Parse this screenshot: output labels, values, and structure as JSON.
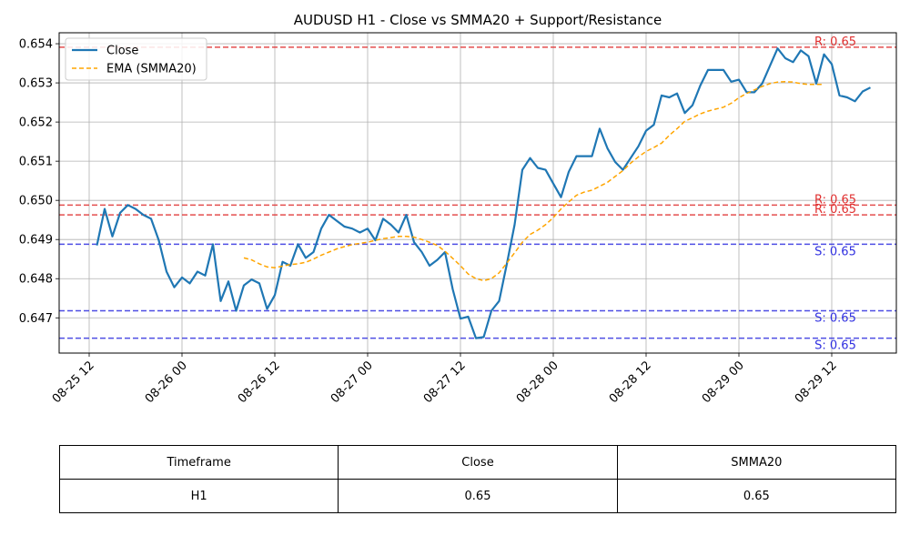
{
  "chart_data": {
    "type": "line",
    "title": "AUDUSD H1 - Close vs SMMA20 + Support/Resistance",
    "xlabel": "",
    "ylabel": "",
    "x_ticks": [
      "08-25 12",
      "08-26 00",
      "08-26 12",
      "08-27 00",
      "08-27 12",
      "08-28 00",
      "08-28 12",
      "08-29 00",
      "08-29 12"
    ],
    "y_ticks": [
      "0.647",
      "0.648",
      "0.649",
      "0.650",
      "0.651",
      "0.652",
      "0.653",
      "0.654"
    ],
    "ylim": [
      0.6461,
      0.65428
    ],
    "grid": true,
    "legend_position": "top-left",
    "series": [
      {
        "name": "Close",
        "color": "#1f77b4",
        "style": "solid",
        "start_time": "08-25 13",
        "step": "1h",
        "values": [
          0.64885,
          0.64978,
          0.64908,
          0.64968,
          0.64988,
          0.64978,
          0.64963,
          0.64953,
          0.64898,
          0.64818,
          0.64778,
          0.64803,
          0.64788,
          0.64818,
          0.64808,
          0.64888,
          0.64743,
          0.64793,
          0.64718,
          0.64783,
          0.64798,
          0.64788,
          0.64723,
          0.64758,
          0.64843,
          0.64833,
          0.64888,
          0.64853,
          0.64868,
          0.64928,
          0.64963,
          0.64948,
          0.64933,
          0.64928,
          0.64918,
          0.64928,
          0.64898,
          0.64953,
          0.64938,
          0.64918,
          0.64963,
          0.64893,
          0.64868,
          0.64833,
          0.64848,
          0.64868,
          0.64773,
          0.64698,
          0.64703,
          0.64648,
          0.64651,
          0.64718,
          0.64743,
          0.64838,
          0.64938,
          0.65078,
          0.65108,
          0.65083,
          0.65078,
          0.65043,
          0.65008,
          0.65073,
          0.65113,
          0.65113,
          0.65113,
          0.65183,
          0.65133,
          0.65098,
          0.65078,
          0.65108,
          0.65138,
          0.65178,
          0.65193,
          0.65268,
          0.65263,
          0.65273,
          0.65223,
          0.65243,
          0.65293,
          0.65333,
          0.65333,
          0.65333,
          0.65303,
          0.65308,
          0.65276,
          0.65276,
          0.65298,
          0.65343,
          0.65388,
          0.65363,
          0.65353,
          0.65383,
          0.65368,
          0.65298,
          0.65373,
          0.65348,
          0.65268,
          0.65263,
          0.65253,
          0.65278,
          0.65288
        ]
      },
      {
        "name": "EMA (SMMA20)",
        "color": "#ffa500",
        "style": "dashed",
        "start_time": "08-26 08",
        "step": "1h",
        "values": [
          0.64853,
          0.64848,
          0.64838,
          0.6483,
          0.64828,
          0.64832,
          0.64836,
          0.64838,
          0.64842,
          0.6485,
          0.6486,
          0.64868,
          0.64876,
          0.64882,
          0.64887,
          0.6489,
          0.64893,
          0.64898,
          0.64902,
          0.64905,
          0.64908,
          0.64908,
          0.64906,
          0.649,
          0.64893,
          0.64885,
          0.6487,
          0.64852,
          0.64833,
          0.64812,
          0.648,
          0.64795,
          0.648,
          0.64815,
          0.6484,
          0.64866,
          0.64893,
          0.64913,
          0.64924,
          0.64938,
          0.64956,
          0.64978,
          0.64996,
          0.65013,
          0.65021,
          0.65026,
          0.65036,
          0.65046,
          0.65061,
          0.65076,
          0.65095,
          0.65111,
          0.65125,
          0.65135,
          0.65146,
          0.65166,
          0.65183,
          0.65202,
          0.65211,
          0.65221,
          0.65228,
          0.65233,
          0.65238,
          0.65248,
          0.65262,
          0.65273,
          0.65282,
          0.65291,
          0.65298,
          0.65302,
          0.65303,
          0.65302,
          0.65298,
          0.65296,
          0.65296,
          0.65296
        ]
      }
    ],
    "levels": [
      {
        "kind": "resistance",
        "value": 0.65391,
        "label": "R: 0.65",
        "color": "#e03030"
      },
      {
        "kind": "resistance",
        "value": 0.64988,
        "label": "R: 0.65",
        "color": "#e03030"
      },
      {
        "kind": "resistance",
        "value": 0.64963,
        "label": "R: 0.65",
        "color": "#e03030"
      },
      {
        "kind": "support",
        "value": 0.64888,
        "label": "S: 0.65",
        "color": "#3030e0"
      },
      {
        "kind": "support",
        "value": 0.64718,
        "label": "S: 0.65",
        "color": "#3030e0"
      },
      {
        "kind": "support",
        "value": 0.64648,
        "label": "S: 0.65",
        "color": "#3030e0"
      }
    ]
  },
  "table": {
    "headers": [
      "Timeframe",
      "Close",
      "SMMA20"
    ],
    "row": [
      "H1",
      "0.65",
      "0.65"
    ]
  }
}
